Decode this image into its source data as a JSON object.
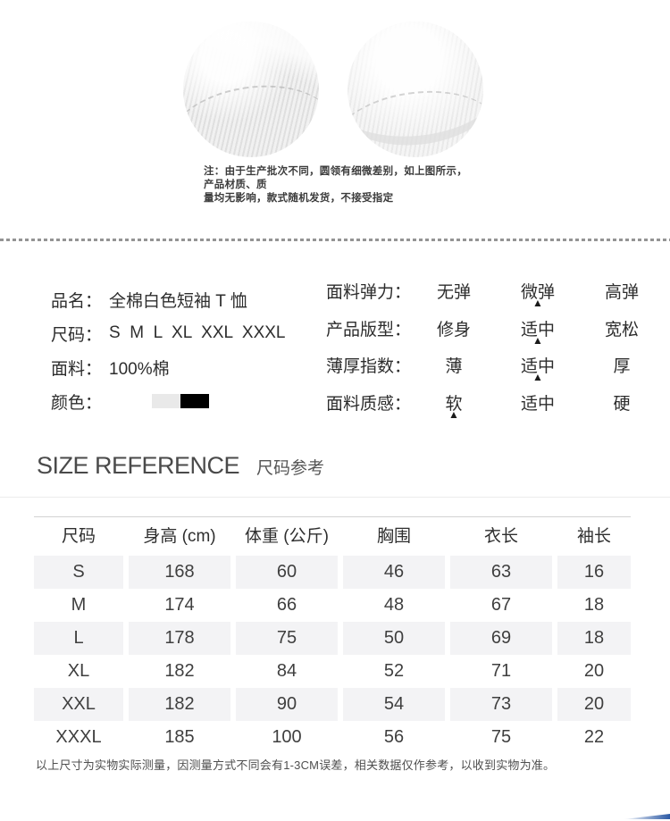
{
  "fabric_note": {
    "lines": [
      "注：由于生产批次不同，圆领有细微差别，如上图所示，产品材质、质",
      "量均无影响，款式随机发货，不接受指定"
    ]
  },
  "product_info": {
    "name_label": "品名：",
    "name_value": "全棉白色短袖 T 恤",
    "size_label": "尺码：",
    "size_value": "S  M  L  XL  XXL  XXXL",
    "fabric_label": "面料：",
    "fabric_value": "100%棉",
    "color_label": "颜色：",
    "color_swatches": [
      "#e9e9e9",
      "#000000"
    ]
  },
  "properties": {
    "marker": "▲",
    "rows": [
      {
        "label": "面料弹力：",
        "options": [
          "无弹",
          "微弹",
          "高弹"
        ],
        "selected": 1
      },
      {
        "label": "产品版型：",
        "options": [
          "修身",
          "适中",
          "宽松"
        ],
        "selected": 1
      },
      {
        "label": "薄厚指数：",
        "options": [
          "薄",
          "适中",
          "厚"
        ],
        "selected": 1
      },
      {
        "label": "面料质感：",
        "options": [
          "软",
          "适中",
          "硬"
        ],
        "selected": 0
      }
    ]
  },
  "size_section": {
    "title_en": "SIZE REFERENCE",
    "title_zh": "尺码参考",
    "footnote": "以上尺寸为实物实际测量，因测量方式不同会有1-3CM误差，相关数据仅作参考，以收到实物为准。"
  },
  "size_table": {
    "headers": [
      "尺码",
      "身高 (cm)",
      "体重 (公斤)",
      "胸围",
      "衣长",
      "袖长"
    ],
    "rows": [
      [
        "S",
        "168",
        "60",
        "46",
        "63",
        "16"
      ],
      [
        "M",
        "174",
        "66",
        "48",
        "67",
        "18"
      ],
      [
        "L",
        "178",
        "75",
        "50",
        "69",
        "18"
      ],
      [
        "XL",
        "182",
        "84",
        "52",
        "71",
        "20"
      ],
      [
        "XXL",
        "182",
        "90",
        "54",
        "73",
        "20"
      ],
      [
        "XXXL",
        "185",
        "100",
        "56",
        "75",
        "22"
      ]
    ]
  }
}
